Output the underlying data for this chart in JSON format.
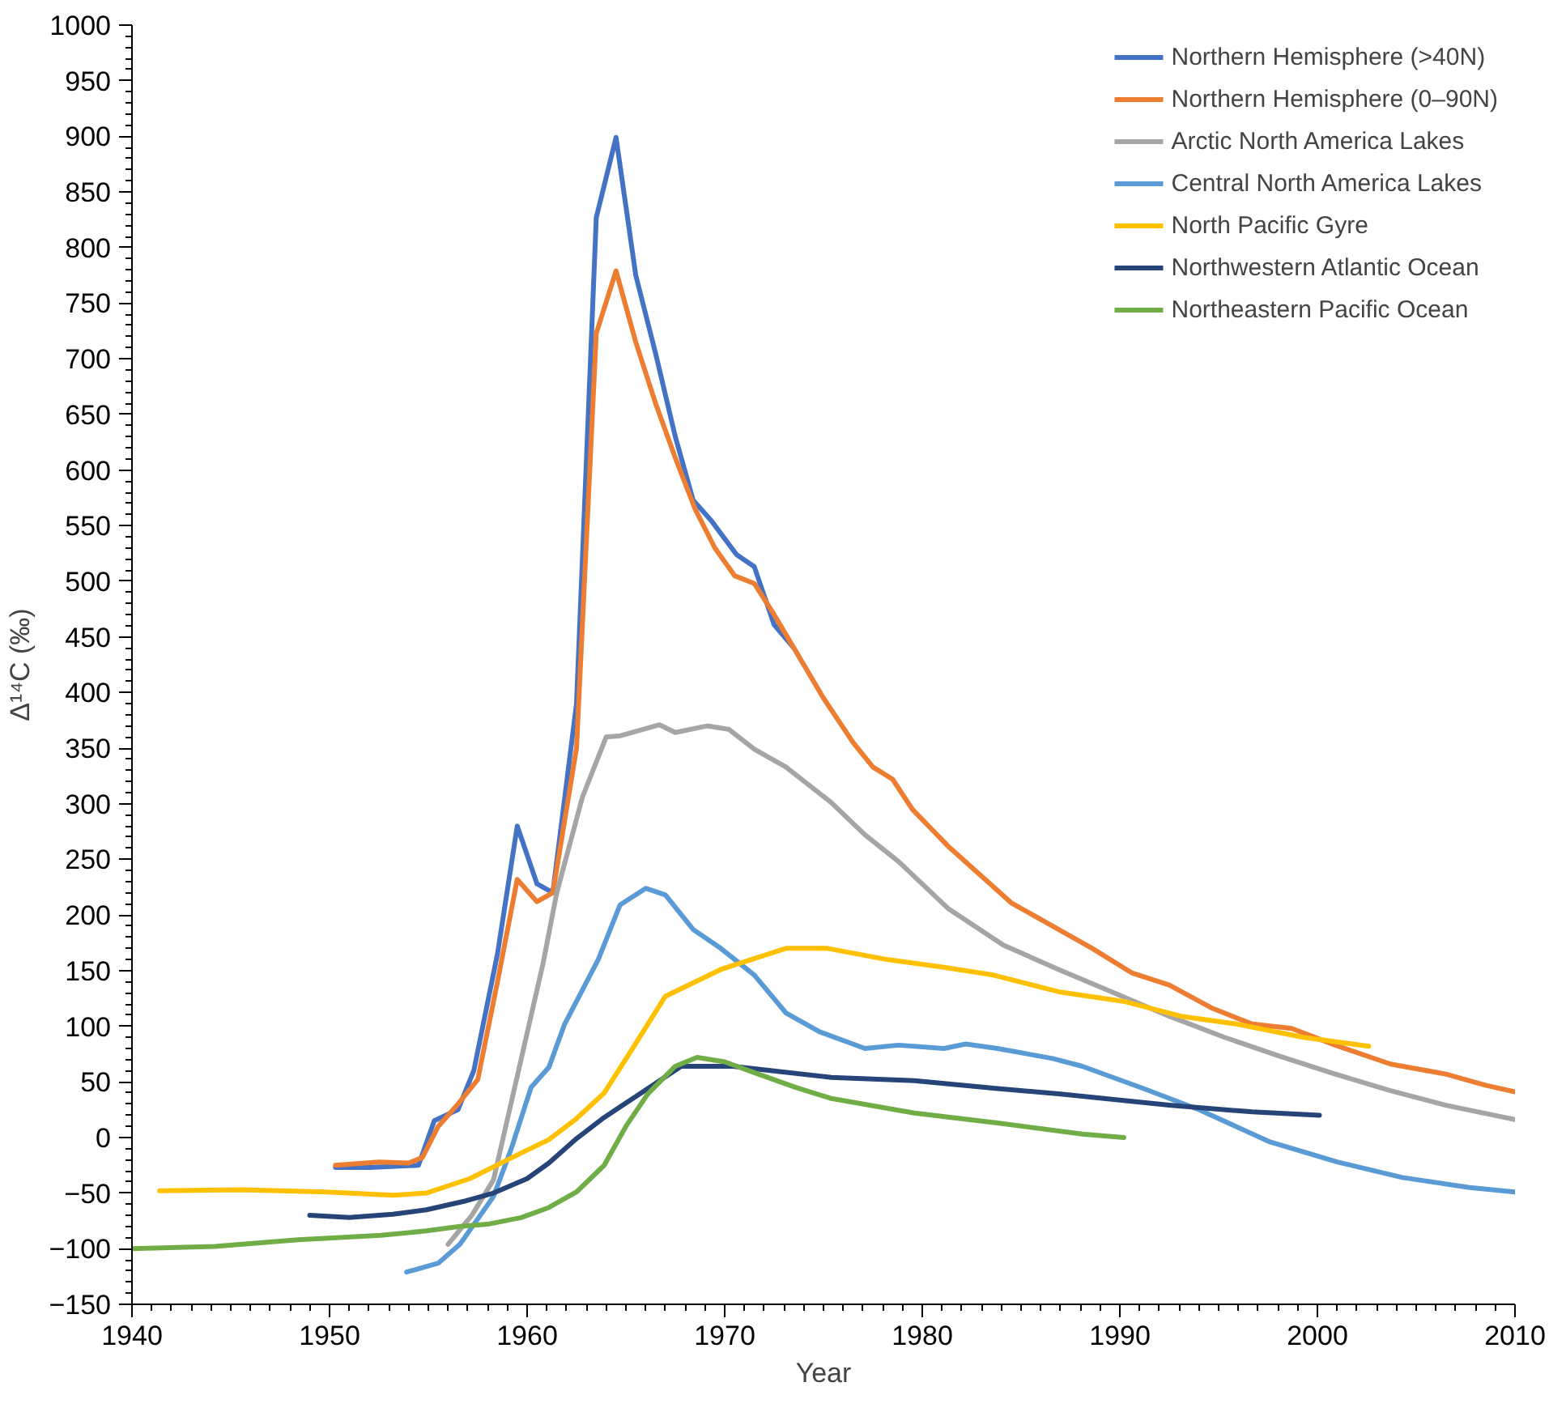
{
  "chart_data": {
    "type": "line",
    "xlabel": "Year",
    "ylabel": "Δ¹⁴C (‰)",
    "xlim": [
      1940,
      2010
    ],
    "ylim": [
      -150,
      1000
    ],
    "xticks": [
      1940,
      1950,
      1960,
      1970,
      1980,
      1990,
      2000,
      2010
    ],
    "yticks": [
      -150,
      -100,
      -50,
      0,
      50,
      100,
      150,
      200,
      250,
      300,
      350,
      400,
      450,
      500,
      550,
      600,
      650,
      700,
      750,
      800,
      850,
      900,
      950,
      1000
    ],
    "grid": false,
    "legend": "top right",
    "marker": "none",
    "line_style": "solid",
    "series": [
      {
        "name": "Northern Hemisphere (>40N)",
        "color": "#4472c4",
        "x": [
          1950.3,
          1952,
          1954.5,
          1955.3,
          1956.5,
          1957.3,
          1958.5,
          1959.5,
          1960.5,
          1961.3,
          1962.5,
          1963.5,
          1964.5,
          1965.5,
          1966.5,
          1967.5,
          1968.4,
          1969.3,
          1970.6,
          1971.5,
          1972.5,
          1973.5
        ],
        "values": [
          -27,
          -27,
          -25,
          15,
          25,
          60,
          165,
          280,
          228,
          220,
          390,
          827,
          899,
          775,
          705,
          630,
          573,
          555,
          524,
          513,
          461,
          440
        ]
      },
      {
        "name": "Northern Hemisphere (0–90N)",
        "color": "#ed7d31",
        "x": [
          1950.3,
          1952.5,
          1954,
          1954.7,
          1955.5,
          1956.5,
          1957.5,
          1958.5,
          1959.5,
          1960.5,
          1961.3,
          1962.5,
          1963.5,
          1964.5,
          1965.5,
          1966.5,
          1967.5,
          1968.5,
          1969.5,
          1970.5,
          1971.5,
          1972.5,
          1973.5,
          1975,
          1976.5,
          1977.5,
          1978.5,
          1979.5,
          1981.3,
          1984.5,
          1986.4,
          1988.6,
          1990.6,
          1992.5,
          1994.7,
          1996.7,
          1998.7,
          2000.9,
          2003.7,
          2006.5,
          2008.5,
          2010
        ],
        "values": [
          -25,
          -22,
          -23,
          -18,
          10,
          30,
          52,
          140,
          232,
          212,
          220,
          350,
          723,
          779,
          715,
          660,
          611,
          565,
          530,
          505,
          498,
          470,
          440,
          395,
          355,
          333,
          322,
          295,
          262,
          211,
          192,
          170,
          148,
          137,
          116,
          102,
          98,
          83,
          66,
          57,
          47,
          41
        ]
      },
      {
        "name": "Arctic North America Lakes",
        "color": "#a5a5a5",
        "x": [
          1956,
          1957.2,
          1958.3,
          1959.5,
          1960.8,
          1961.5,
          1962.8,
          1964,
          1964.7,
          1966.7,
          1967.5,
          1969.1,
          1970.2,
          1971.5,
          1973.1,
          1975.4,
          1977.1,
          1978.8,
          1981.3,
          1984.1,
          1986.9,
          1989.7,
          1992.5,
          1995.3,
          1998.1,
          2000.9,
          2003.7,
          2006.5,
          2010
        ],
        "values": [
          -96,
          -70,
          -38,
          55,
          156,
          220,
          306,
          360,
          361,
          371,
          364,
          370,
          367,
          349,
          333,
          301,
          272,
          248,
          206,
          173,
          151,
          130,
          109,
          90,
          73,
          57,
          42,
          29,
          16
        ]
      },
      {
        "name": "Central North America Lakes",
        "color": "#5b9bd5",
        "x": [
          1953.9,
          1955.5,
          1956.6,
          1958.3,
          1959.2,
          1960.2,
          1961.1,
          1961.9,
          1963.6,
          1964.7,
          1966,
          1967,
          1968.4,
          1969.8,
          1971.5,
          1973.1,
          1974.8,
          1977.1,
          1978.8,
          1981.1,
          1982.2,
          1983.8,
          1986.6,
          1988.1,
          1991.2,
          1994,
          1997.6,
          2001,
          2004.3,
          2007.7,
          2010
        ],
        "values": [
          -121,
          -113,
          -96,
          -53,
          -10,
          45,
          63,
          102,
          160,
          209,
          224,
          218,
          187,
          170,
          146,
          112,
          95,
          80,
          83,
          80,
          84,
          80,
          71,
          64,
          44,
          25,
          -4,
          -22,
          -36,
          -45,
          -49
        ]
      },
      {
        "name": "North Pacific Gyre",
        "color": "#ffc000",
        "x": [
          1941.4,
          1945.6,
          1949.8,
          1953.2,
          1954.9,
          1957.1,
          1959.7,
          1961.1,
          1962.5,
          1963.9,
          1965.3,
          1967,
          1969.8,
          1973.1,
          1975.2,
          1978.2,
          1981.1,
          1983.6,
          1986.9,
          1990.3,
          1993.1,
          1995.9,
          1999.3,
          2002.6
        ],
        "values": [
          -48,
          -47,
          -49,
          -52,
          -50,
          -37,
          -14,
          -2,
          17,
          40,
          79,
          127,
          151,
          170,
          170,
          160,
          153,
          146,
          131,
          122,
          109,
          102,
          90,
          82
        ]
      },
      {
        "name": "Northwestern Atlantic Ocean",
        "color": "#264478",
        "x": [
          1949,
          1951,
          1953.2,
          1954.9,
          1956.9,
          1958.3,
          1960,
          1961.1,
          1962.5,
          1963.9,
          1965.6,
          1967.8,
          1970.4,
          1975.4,
          1979.6,
          1983.8,
          1987,
          1992.5,
          1996.7,
          2000.1
        ],
        "values": [
          -70,
          -72,
          -69,
          -65,
          -57,
          -50,
          -37,
          -23,
          -1,
          18,
          38,
          64,
          64,
          54,
          51,
          44,
          39,
          29,
          23,
          20
        ]
      },
      {
        "name": "Northeastern Pacific Ocean",
        "color": "#70ad47",
        "x": [
          1940,
          1944.2,
          1948.4,
          1952.6,
          1954.9,
          1956.6,
          1958,
          1959.7,
          1961.1,
          1962.5,
          1963.9,
          1965,
          1966.1,
          1967.5,
          1968.6,
          1970,
          1971.7,
          1973.6,
          1975.4,
          1979.6,
          1983.8,
          1988.1,
          1990.2
        ],
        "values": [
          -100,
          -98,
          -92,
          -88,
          -84,
          -80,
          -78,
          -72,
          -63,
          -49,
          -25,
          10,
          39,
          64,
          72,
          68,
          57,
          45,
          35,
          22,
          13,
          3,
          0
        ]
      }
    ]
  }
}
